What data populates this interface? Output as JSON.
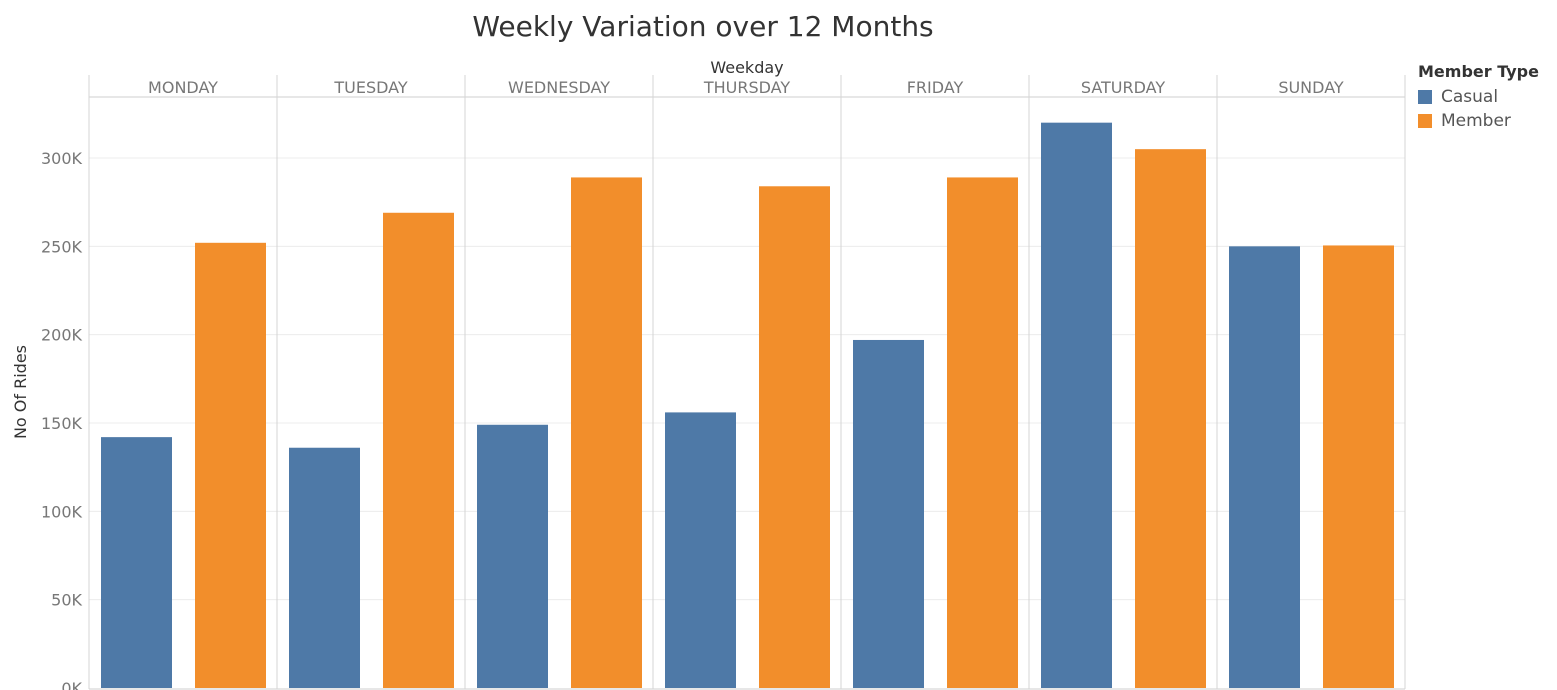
{
  "chart_data": {
    "type": "bar",
    "title": "Weekly Variation over 12 Months",
    "column_header": "Weekday",
    "ylabel": "No Of Rides",
    "categories": [
      "MONDAY",
      "TUESDAY",
      "WEDNESDAY",
      "THURSDAY",
      "FRIDAY",
      "SATURDAY",
      "SUNDAY"
    ],
    "legend_title": "Member Type",
    "legend_placement": "right",
    "series": [
      {
        "name": "Casual",
        "color": "#4e79a7",
        "values": [
          142000,
          136000,
          149000,
          156000,
          197000,
          320000,
          250000
        ]
      },
      {
        "name": "Member",
        "color": "#f28e2b",
        "values": [
          252000,
          269000,
          289000,
          284000,
          289000,
          305000,
          250500
        ]
      }
    ],
    "ylim": [
      0,
      320000
    ],
    "yticks": [
      0,
      50000,
      100000,
      150000,
      200000,
      250000,
      300000
    ],
    "ytick_labels": [
      "0K",
      "50K",
      "100K",
      "150K",
      "200K",
      "250K",
      "300K"
    ],
    "grid": true
  }
}
